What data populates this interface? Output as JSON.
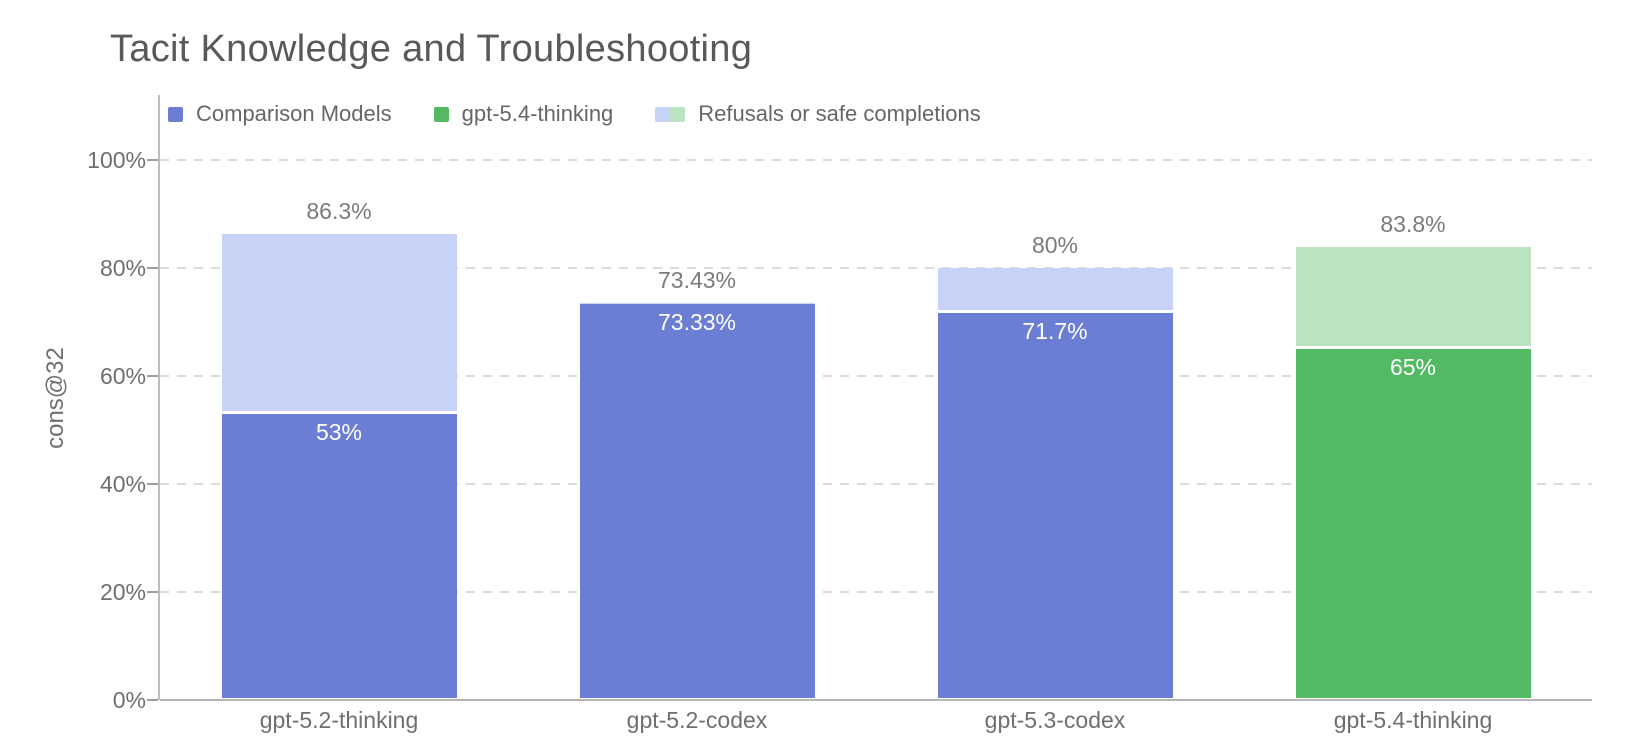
{
  "chart_data": {
    "type": "bar",
    "subtype": "stacked",
    "title": "Tacit Knowledge and Troubleshooting",
    "ylabel": "cons@32",
    "ylim": [
      0,
      112
    ],
    "yticks": [
      0,
      20,
      40,
      60,
      80,
      100
    ],
    "ytick_labels": [
      "0%",
      "20%",
      "40%",
      "60%",
      "80%",
      "100%"
    ],
    "grid": "horizontal-dashed",
    "legend_position": "top-left-inside",
    "palette": {
      "comparison": {
        "solid": "#6B7ED3",
        "refusal": "#C6D2F6"
      },
      "highlight": {
        "solid": "#53B963",
        "refusal": "#BAE3C2"
      }
    },
    "legend": [
      {
        "label": "Comparison Models",
        "swatches": [
          "#6B7ED3"
        ]
      },
      {
        "label": "gpt-5.4-thinking",
        "swatches": [
          "#53B963"
        ]
      },
      {
        "label": "Refusals or safe completions",
        "swatches": [
          "#C6D2F6",
          "#BAE3C2"
        ]
      }
    ],
    "categories": [
      "gpt-5.2-thinking",
      "gpt-5.2-codex",
      "gpt-5.3-codex",
      "gpt-5.4-thinking"
    ],
    "bars": [
      {
        "category": "gpt-5.2-thinking",
        "palette": "comparison",
        "value": 53,
        "value_label": "53%",
        "total": 86.3,
        "total_label": "86.3%"
      },
      {
        "category": "gpt-5.2-codex",
        "palette": "comparison",
        "value": 73.33,
        "value_label": "73.33%",
        "total": 73.43,
        "total_label": "73.43%"
      },
      {
        "category": "gpt-5.3-codex",
        "palette": "comparison",
        "value": 71.7,
        "value_label": "71.7%",
        "total": 80,
        "total_label": "80%"
      },
      {
        "category": "gpt-5.4-thinking",
        "palette": "highlight",
        "value": 65,
        "value_label": "65%",
        "total": 83.8,
        "total_label": "83.8%"
      }
    ]
  }
}
